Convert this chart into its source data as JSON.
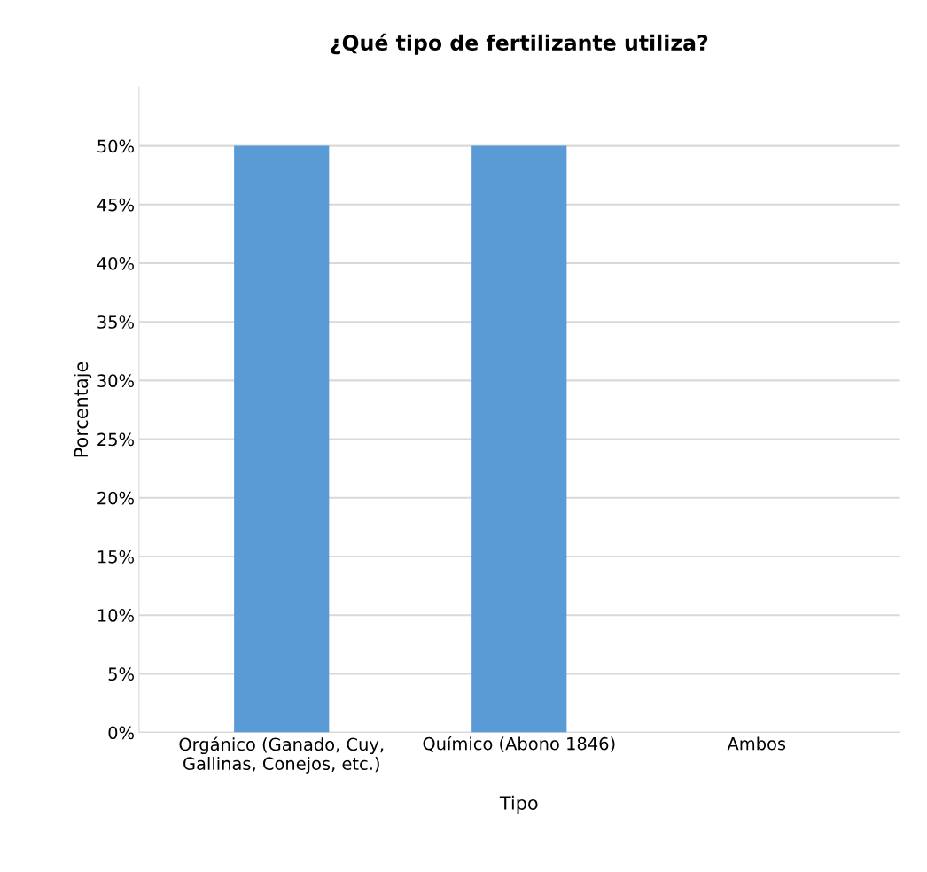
{
  "chart_data": {
    "type": "bar",
    "title": "¿Qué tipo de fertilizante utiliza?",
    "categories": [
      "Orgánico (Ganado, Cuy,\nGallinas, Conejos, etc.)",
      "Químico (Abono 1846)",
      "Ambos"
    ],
    "values": [
      50,
      50,
      0
    ],
    "color": "#5b9bd5",
    "xlabel": "Tipo",
    "ylabel": "Porcentaje",
    "ylim": [
      0,
      55
    ],
    "yticks": [
      {
        "value": 0,
        "label": "0%"
      },
      {
        "value": 5,
        "label": "5%"
      },
      {
        "value": 10,
        "label": "10%"
      },
      {
        "value": 15,
        "label": "15%"
      },
      {
        "value": 20,
        "label": "20%"
      },
      {
        "value": 25,
        "label": "25%"
      },
      {
        "value": 30,
        "label": "30%"
      },
      {
        "value": 35,
        "label": "35%"
      },
      {
        "value": 40,
        "label": "40%"
      },
      {
        "value": 45,
        "label": "45%"
      },
      {
        "value": 50,
        "label": "50%"
      }
    ],
    "grid": "y",
    "legend": false
  }
}
